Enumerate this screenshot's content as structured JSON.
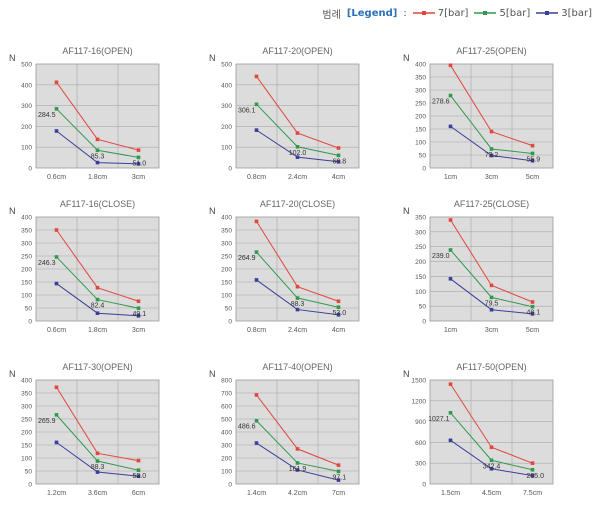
{
  "legend": {
    "prefix": "범례",
    "keyword": "[Legend]",
    "separator": ":",
    "entries": [
      {
        "label": "7[bar]",
        "color": "#e0473d"
      },
      {
        "label": "5[bar]",
        "color": "#2f9a4e"
      },
      {
        "label": "3[bar]",
        "color": "#3a3f9a"
      }
    ]
  },
  "chart_data": [
    {
      "type": "line",
      "title": "AF117-16(OPEN)",
      "ylabel": "N",
      "categories": [
        "0.6cm",
        "1.8cm",
        "3cm"
      ],
      "ylim": [
        0,
        500
      ],
      "yticks": [
        0,
        100,
        200,
        300,
        400,
        500
      ],
      "series": [
        {
          "name": "7[bar]",
          "values": [
            412,
            138,
            86
          ]
        },
        {
          "name": "5[bar]",
          "values": [
            284.5,
            85.3,
            51.0
          ]
        },
        {
          "name": "3[bar]",
          "values": [
            178,
            26,
            20
          ]
        }
      ],
      "data_labels": [
        {
          "series": 1,
          "index": 0,
          "text": "284.5"
        },
        {
          "series": 1,
          "index": 1,
          "text": "85.3"
        },
        {
          "series": 1,
          "index": 2,
          "text": "51.0"
        }
      ]
    },
    {
      "type": "line",
      "title": "AF117-20(OPEN)",
      "ylabel": "N",
      "categories": [
        "0.8cm",
        "2.4cm",
        "4cm"
      ],
      "ylim": [
        0,
        500
      ],
      "yticks": [
        0,
        100,
        200,
        300,
        400,
        500
      ],
      "series": [
        {
          "name": "7[bar]",
          "values": [
            440,
            168,
            96
          ]
        },
        {
          "name": "5[bar]",
          "values": [
            306.1,
            102.0,
            60.8
          ]
        },
        {
          "name": "3[bar]",
          "values": [
            182,
            52,
            30
          ]
        }
      ],
      "data_labels": [
        {
          "series": 1,
          "index": 0,
          "text": "306.1"
        },
        {
          "series": 1,
          "index": 1,
          "text": "102.0"
        },
        {
          "series": 1,
          "index": 2,
          "text": "60.8"
        }
      ]
    },
    {
      "type": "line",
      "title": "AF117-25(OPEN)",
      "ylabel": "N",
      "categories": [
        "1cm",
        "3cm",
        "5cm"
      ],
      "ylim": [
        0,
        400
      ],
      "yticks": [
        0,
        50,
        100,
        150,
        200,
        250,
        300,
        350,
        400
      ],
      "series": [
        {
          "name": "7[bar]",
          "values": [
            395,
            140,
            86
          ]
        },
        {
          "name": "5[bar]",
          "values": [
            278.6,
            73.2,
            55.9
          ]
        },
        {
          "name": "3[bar]",
          "values": [
            160,
            48,
            28
          ]
        }
      ],
      "data_labels": [
        {
          "series": 1,
          "index": 0,
          "text": "278.6"
        },
        {
          "series": 1,
          "index": 1,
          "text": "73.2"
        },
        {
          "series": 1,
          "index": 2,
          "text": "55.9"
        }
      ]
    },
    {
      "type": "line",
      "title": "AF117-16(CLOSE)",
      "ylabel": "N",
      "categories": [
        "0.6cm",
        "1.8cm",
        "3cm"
      ],
      "ylim": [
        0,
        400
      ],
      "yticks": [
        0,
        50,
        100,
        150,
        200,
        250,
        300,
        350,
        400
      ],
      "series": [
        {
          "name": "7[bar]",
          "values": [
            350,
            128,
            76
          ]
        },
        {
          "name": "5[bar]",
          "values": [
            246.3,
            82.4,
            49.1
          ]
        },
        {
          "name": "3[bar]",
          "values": [
            144,
            30,
            20
          ]
        }
      ],
      "data_labels": [
        {
          "series": 1,
          "index": 0,
          "text": "246.3"
        },
        {
          "series": 1,
          "index": 1,
          "text": "82.4"
        },
        {
          "series": 1,
          "index": 2,
          "text": "49.1"
        }
      ]
    },
    {
      "type": "line",
      "title": "AF117-20(CLOSE)",
      "ylabel": "N",
      "categories": [
        "0.8cm",
        "2.4cm",
        "4cm"
      ],
      "ylim": [
        0,
        400
      ],
      "yticks": [
        0,
        50,
        100,
        150,
        200,
        250,
        300,
        350,
        400
      ],
      "series": [
        {
          "name": "7[bar]",
          "values": [
            383,
            132,
            76
          ]
        },
        {
          "name": "5[bar]",
          "values": [
            264.9,
            88.3,
            53.0
          ]
        },
        {
          "name": "3[bar]",
          "values": [
            158,
            44,
            24
          ]
        }
      ],
      "data_labels": [
        {
          "series": 1,
          "index": 0,
          "text": "264.9"
        },
        {
          "series": 1,
          "index": 1,
          "text": "88.3"
        },
        {
          "series": 1,
          "index": 2,
          "text": "53.0"
        }
      ]
    },
    {
      "type": "line",
      "title": "AF117-25(CLOSE)",
      "ylabel": "N",
      "categories": [
        "1cm",
        "3cm",
        "5cm"
      ],
      "ylim": [
        0,
        350
      ],
      "yticks": [
        0,
        50,
        100,
        150,
        200,
        250,
        300,
        350
      ],
      "series": [
        {
          "name": "7[bar]",
          "values": [
            340,
            120,
            64
          ]
        },
        {
          "name": "5[bar]",
          "values": [
            239.0,
            79.5,
            48.1
          ]
        },
        {
          "name": "3[bar]",
          "values": [
            142,
            38,
            24
          ]
        }
      ],
      "data_labels": [
        {
          "series": 1,
          "index": 0,
          "text": "239.0"
        },
        {
          "series": 1,
          "index": 1,
          "text": "79.5"
        },
        {
          "series": 1,
          "index": 2,
          "text": "48.1"
        }
      ]
    },
    {
      "type": "line",
      "title": "AF117-30(OPEN)",
      "ylabel": "N",
      "categories": [
        "1.2cm",
        "3.6cm",
        "6cm"
      ],
      "ylim": [
        0,
        400
      ],
      "yticks": [
        0,
        50,
        100,
        150,
        200,
        250,
        300,
        350,
        400
      ],
      "series": [
        {
          "name": "7[bar]",
          "values": [
            372,
            118,
            90
          ]
        },
        {
          "name": "5[bar]",
          "values": [
            265.9,
            88.3,
            53.0
          ]
        },
        {
          "name": "3[bar]",
          "values": [
            160,
            46,
            30
          ]
        }
      ],
      "data_labels": [
        {
          "series": 1,
          "index": 0,
          "text": "265.9"
        },
        {
          "series": 1,
          "index": 1,
          "text": "88.3"
        },
        {
          "series": 1,
          "index": 2,
          "text": "53.0"
        }
      ]
    },
    {
      "type": "line",
      "title": "AF117-40(OPEN)",
      "ylabel": "N",
      "categories": [
        "1.4cm",
        "4.2cm",
        "7cm"
      ],
      "ylim": [
        0,
        800
      ],
      "yticks": [
        0,
        100,
        200,
        300,
        400,
        500,
        600,
        700,
        800
      ],
      "series": [
        {
          "name": "7[bar]",
          "values": [
            685,
            270,
            145
          ]
        },
        {
          "name": "5[bar]",
          "values": [
            486.6,
            161.9,
            97.1
          ]
        },
        {
          "name": "3[bar]",
          "values": [
            315,
            108,
            30
          ]
        }
      ],
      "data_labels": [
        {
          "series": 1,
          "index": 0,
          "text": "486.6"
        },
        {
          "series": 1,
          "index": 1,
          "text": "161.9"
        },
        {
          "series": 1,
          "index": 2,
          "text": "97.1"
        }
      ]
    },
    {
      "type": "line",
      "title": "AF117-50(OPEN)",
      "ylabel": "N",
      "categories": [
        "1.5cm",
        "4.5cm",
        "7.5cm"
      ],
      "ylim": [
        0,
        1500
      ],
      "yticks": [
        0,
        300,
        600,
        900,
        1200,
        1500
      ],
      "series": [
        {
          "name": "7[bar]",
          "values": [
            1440,
            530,
            300
          ]
        },
        {
          "name": "5[bar]",
          "values": [
            1027.1,
            342.4,
            205.0
          ]
        },
        {
          "name": "3[bar]",
          "values": [
            630,
            220,
            120
          ]
        }
      ],
      "data_labels": [
        {
          "series": 1,
          "index": 0,
          "text": "1027.1"
        },
        {
          "series": 1,
          "index": 1,
          "text": "342.4"
        },
        {
          "series": 1,
          "index": 2,
          "text": "205.0"
        }
      ]
    }
  ]
}
